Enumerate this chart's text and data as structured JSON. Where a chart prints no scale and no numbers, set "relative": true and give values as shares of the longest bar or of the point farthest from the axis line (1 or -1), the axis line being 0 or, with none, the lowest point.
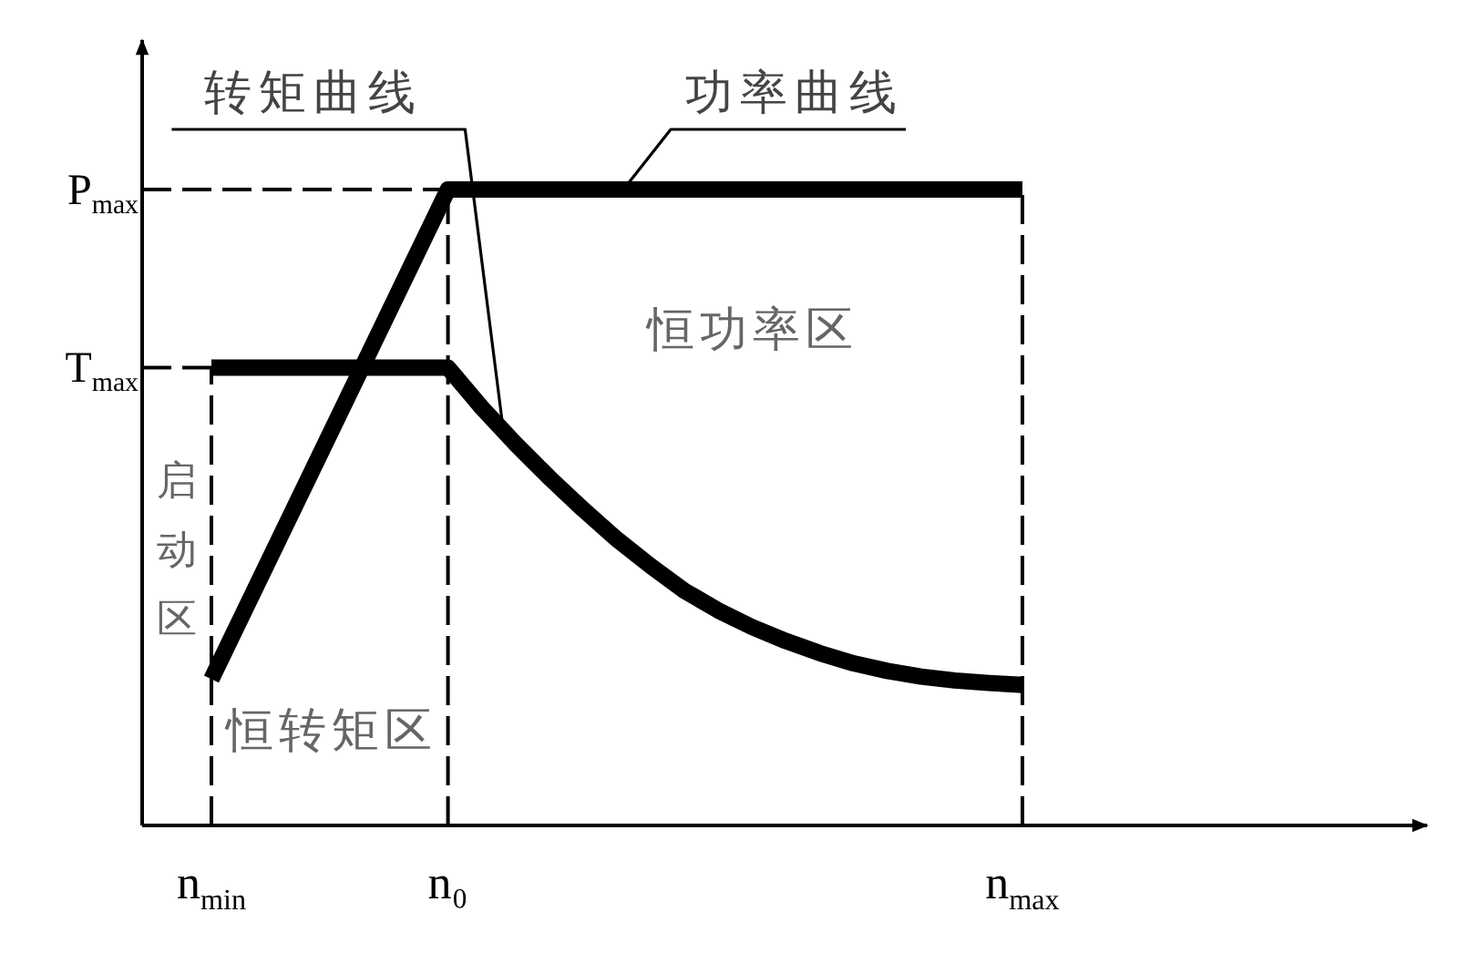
{
  "chart_data": {
    "type": "line",
    "relative": true,
    "categories": [
      "n$_{min}$",
      null,
      null,
      null,
      null,
      null,
      null,
      "n₀",
      null,
      null,
      null,
      null,
      null,
      null,
      null,
      null,
      null,
      null,
      null,
      null,
      null,
      null,
      null,
      null,
      "n$_{max}$"
    ],
    "series": [
      {
        "name": "转矩曲线",
        "color": "#000000",
        "values": [
          0.72,
          0.72,
          0.72,
          0.72,
          0.72,
          0.72,
          0.72,
          0.72,
          0.657,
          0.6,
          0.547,
          0.497,
          0.45,
          0.408,
          0.369,
          0.338,
          0.312,
          0.29,
          0.271,
          0.255,
          0.243,
          0.234,
          0.228,
          0.224,
          0.221
        ]
      },
      {
        "name": "功率曲线",
        "color": "#000000",
        "values": [
          0.23,
          0.34,
          0.45,
          0.56,
          0.67,
          0.78,
          0.89,
          1,
          1,
          1,
          1,
          1,
          1,
          1,
          1,
          1,
          1,
          1,
          1,
          1,
          1,
          1,
          1,
          1,
          1
        ]
      }
    ],
    "ref_lines": [
      {
        "axis": "x",
        "value": "n$_{min}$",
        "line_style": "dashed"
      },
      {
        "axis": "x",
        "value": "n₀",
        "line_style": "dashed"
      },
      {
        "axis": "x",
        "value": "n$_{max}$",
        "line_style": "dashed"
      },
      {
        "axis": "y",
        "value": 0.72,
        "label": "T$_{max}$",
        "line_style": "dashed"
      },
      {
        "axis": "y",
        "value": 1,
        "label": "P$_{max}$",
        "line_style": "dashed"
      }
    ],
    "annotations": [
      "恒功率区",
      "恒转矩区",
      "启动区"
    ],
    "line_style": "solid"
  }
}
